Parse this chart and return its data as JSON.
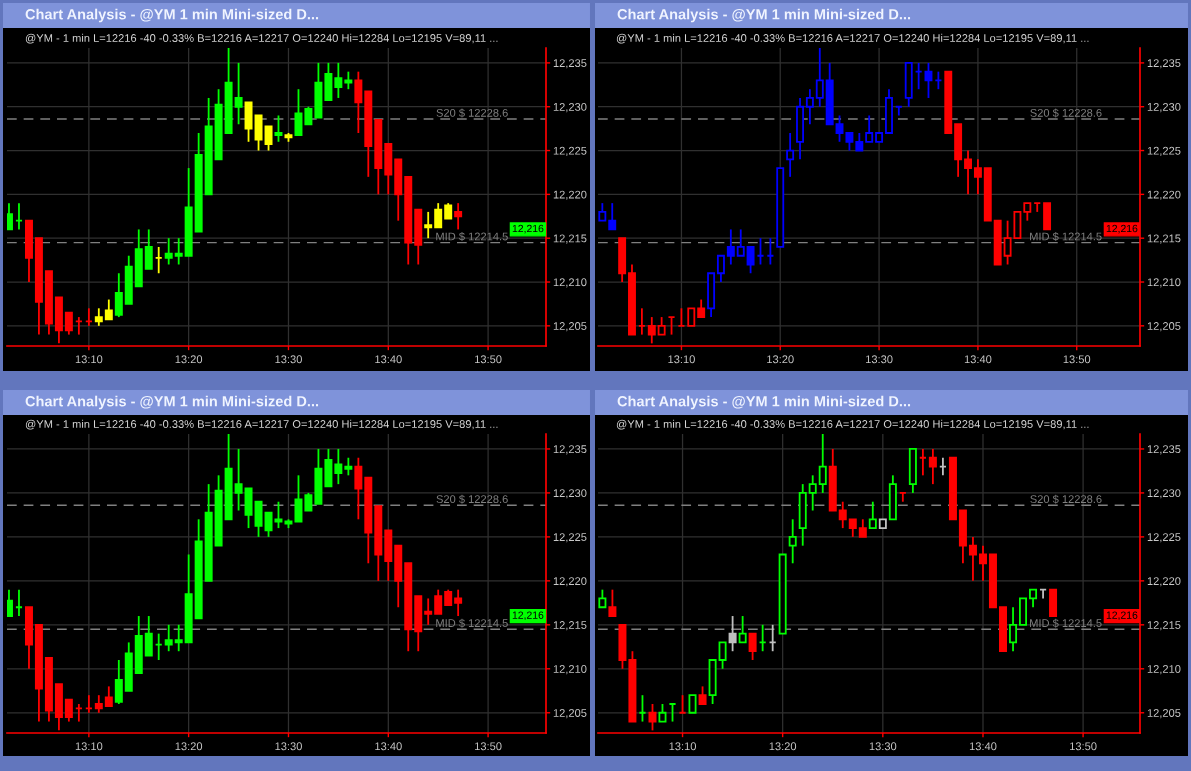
{
  "chart_data": [
    {
      "type": "candlestick",
      "title": "Chart Analysis - @YM 1 min Mini-sized D...",
      "subtitle": "@YM - 1 min L=12216 -40 -0.33% B=12216 A=12217 O=12240 Hi=12284 Lo=12195 V=89,11 ...",
      "x": [
        13.0333,
        13.05,
        13.0667,
        13.0833,
        13.1,
        13.1167,
        13.1333,
        13.15,
        13.1667,
        13.1833,
        13.2,
        13.2167,
        13.2333,
        13.25,
        13.2667,
        13.2833,
        13.3,
        13.3167,
        13.3333,
        13.35,
        13.3667,
        13.3833,
        13.4,
        13.4167,
        13.4333,
        13.45,
        13.4667,
        13.4833,
        13.5,
        13.5167,
        13.5333,
        13.55,
        13.5667,
        13.5833,
        13.6,
        13.6167,
        13.6333,
        13.65,
        13.6667,
        13.6833,
        13.7,
        13.7167,
        13.7333,
        13.75,
        13.7667,
        13.7833
      ],
      "ohlc": [
        [
          12216,
          12219,
          12216,
          12217.75
        ],
        [
          12217,
          12219,
          12216,
          12217
        ],
        [
          12217,
          12217,
          12210,
          12212.75
        ],
        [
          12215,
          12215,
          12204,
          12207.75
        ],
        [
          12211.25,
          12211.25,
          12204,
          12205.25
        ],
        [
          12208.25,
          12208.25,
          12203,
          12204.5
        ],
        [
          12206.5,
          12206.5,
          12204,
          12204.5
        ],
        [
          12205.5,
          12206,
          12204,
          12205.5
        ],
        [
          12205.5,
          12207,
          12205,
          12205.5
        ],
        [
          12205.5,
          12207,
          12205,
          12206
        ],
        [
          12205.75,
          12208,
          12205.75,
          12206.75
        ],
        [
          12206.25,
          12211,
          12206,
          12208.75
        ],
        [
          12207.5,
          12213,
          12207.5,
          12211.75
        ],
        [
          12209.5,
          12216,
          12209.5,
          12213.75
        ],
        [
          12211.5,
          12216,
          12211.5,
          12214
        ],
        [
          12212.75,
          12214,
          12211,
          12212.75
        ],
        [
          12212.75,
          12215,
          12212,
          12213.25
        ],
        [
          12213,
          12215,
          12212,
          12213.25
        ],
        [
          12213,
          12223,
          12213,
          12218.5
        ],
        [
          12215.75,
          12227,
          12215.75,
          12224.5
        ],
        [
          12220,
          12231,
          12220,
          12227.75
        ],
        [
          12224,
          12232,
          12224,
          12230.25
        ],
        [
          12227,
          12237,
          12227,
          12232.75
        ],
        [
          12230,
          12235,
          12228,
          12231
        ],
        [
          12230.5,
          12230.5,
          12226,
          12227.5
        ],
        [
          12229,
          12229,
          12225,
          12226.25
        ],
        [
          12227.75,
          12227.75,
          12225,
          12225.75
        ],
        [
          12226.75,
          12229,
          12226,
          12227
        ],
        [
          12226.75,
          12227,
          12226,
          12226.5
        ],
        [
          12226.75,
          12232,
          12226.75,
          12229.25
        ],
        [
          12228,
          12230,
          12228,
          12229.75
        ],
        [
          12228.75,
          12235,
          12228.75,
          12232.75
        ],
        [
          12230.75,
          12235,
          12230.75,
          12233.75
        ],
        [
          12232.25,
          12235,
          12231,
          12233.25
        ],
        [
          12232.75,
          12234,
          12232,
          12233
        ],
        [
          12233,
          12234,
          12227,
          12230.5
        ],
        [
          12231.75,
          12231.75,
          12222,
          12225.5
        ],
        [
          12228.5,
          12228.5,
          12220,
          12223
        ],
        [
          12225.75,
          12225.75,
          12220,
          12222.25
        ],
        [
          12224,
          12224,
          12217,
          12220
        ],
        [
          12222,
          12222,
          12212,
          12214.5
        ],
        [
          12218.25,
          12218.25,
          12212,
          12214.25
        ],
        [
          12216.25,
          12218,
          12215,
          12216.5
        ],
        [
          12216.25,
          12219,
          12216.25,
          12218.25
        ],
        [
          12217.25,
          12219,
          12217.25,
          12218.75
        ],
        [
          12218,
          12219,
          12216,
          12217.5
        ]
      ],
      "colors": [
        "#00ff00",
        "#00ff00",
        "#ff0000",
        "#ff0000",
        "#ff0000",
        "#ff0000",
        "#ff0000",
        "#ff0000",
        "#ff0000",
        "#ffff00",
        "#ffff00",
        "#00ff00",
        "#00ff00",
        "#00ff00",
        "#00ff00",
        "#ffff00",
        "#00ff00",
        "#00ff00",
        "#00ff00",
        "#00ff00",
        "#00ff00",
        "#00ff00",
        "#00ff00",
        "#00ff00",
        "#ffff00",
        "#ffff00",
        "#ffff00",
        "#00ff00",
        "#ffff00",
        "#00ff00",
        "#00ff00",
        "#00ff00",
        "#00ff00",
        "#00ff00",
        "#00ff00",
        "#ff0000",
        "#ff0000",
        "#ff0000",
        "#ff0000",
        "#ff0000",
        "#ff0000",
        "#ff0000",
        "#ffff00",
        "#ffff00",
        "#ffff00",
        "#ff0000"
      ],
      "xlim": [
        13.03,
        13.93
      ],
      "ylim": [
        12202.7,
        12236.7
      ],
      "xticks": [
        {
          "value": 13.1667,
          "label": "13:10"
        },
        {
          "value": 13.3333,
          "label": "13:20"
        },
        {
          "value": 13.5,
          "label": "13:30"
        },
        {
          "value": 13.6667,
          "label": "13:40"
        },
        {
          "value": 13.8333,
          "label": "13:50"
        }
      ],
      "yticks": [
        {
          "value": 12205,
          "label": "12,205"
        },
        {
          "value": 12210,
          "label": "12,210"
        },
        {
          "value": 12215,
          "label": "12,215"
        },
        {
          "value": 12220,
          "label": "12,220"
        },
        {
          "value": 12225,
          "label": "12,225"
        },
        {
          "value": 12230,
          "label": "12,230"
        },
        {
          "value": 12235,
          "label": "12,235"
        }
      ],
      "grid": true,
      "ref_lines": [
        {
          "axis": "y",
          "value": 12228.6,
          "label": "S20 $ 12228.6",
          "color": "#808080",
          "line_style": "dashed"
        },
        {
          "axis": "y",
          "value": 12214.5,
          "label": "MID $ 12214.5",
          "color": "#808080",
          "line_style": "dashed"
        }
      ],
      "annotations": [
        {
          "text": "12,216",
          "y": 12216
        }
      ]
    },
    {
      "type": "candlestick",
      "title": "Chart Analysis - @YM 1 min Mini-sized D...",
      "subtitle": "@YM - 1 min L=12216 -40 -0.33% B=12216 A=12217 O=12240 Hi=12284 Lo=12195 V=89,11 ...",
      "series": [
        {
          "color": "#ff0000",
          "x": [
            13.0667,
            13.0833,
            13.1,
            13.1167,
            13.1333,
            13.15,
            13.1667,
            13.1833,
            13.2,
            13.6167,
            13.6333,
            13.65,
            13.6667,
            13.6833,
            13.7,
            13.7167,
            13.7333,
            13.75,
            13.7667,
            13.7833
          ],
          "ohlc": [
            [
              12215,
              12215,
              12210,
              12211
            ],
            [
              12211,
              12212,
              12204,
              12204
            ],
            [
              12205,
              12207,
              12204,
              12205
            ],
            [
              12205,
              12206,
              12203,
              12204
            ],
            [
              12204,
              12206,
              12204,
              12205
            ],
            [
              12206,
              12206,
              12204,
              12206
            ],
            [
              12205,
              12207,
              12205,
              12205
            ],
            [
              12205,
              12207,
              12205,
              12207
            ],
            [
              12207,
              12208,
              12206,
              12206
            ],
            [
              12234,
              12234,
              12227,
              12227
            ],
            [
              12228,
              12228,
              12222,
              12224
            ],
            [
              12224,
              12225,
              12220,
              12223
            ],
            [
              12223,
              12224,
              12220,
              12222
            ],
            [
              12223,
              12223,
              12217,
              12217
            ],
            [
              12217,
              12217,
              12212,
              12212
            ],
            [
              12213,
              12217,
              12212,
              12215
            ],
            [
              12215,
              12218,
              12215,
              12218
            ],
            [
              12218,
              12219,
              12217,
              12219
            ],
            [
              12219,
              12219,
              12218,
              12219
            ],
            [
              12219,
              12219,
              12216,
              12216
            ]
          ],
          "colors": [
            "#ff0000",
            "#ff0000",
            "#ff0000",
            "#ff0000",
            "#000000",
            "#ff0000",
            "#ff0000",
            "#000000",
            "#ff0000",
            "#ff0000",
            "#ff0000",
            "#ff0000",
            "#ff0000",
            "#ff0000",
            "#ff0000",
            "#000000",
            "#000000",
            "#000000",
            "#ff0000",
            "#ff0000"
          ]
        },
        {
          "color": "#0000ff",
          "x": [
            13.0333,
            13.05,
            13.2167,
            13.2333,
            13.25,
            13.2667,
            13.2833,
            13.3,
            13.3167,
            13.3333,
            13.35,
            13.3667,
            13.3833,
            13.4,
            13.4167,
            13.4333,
            13.45,
            13.4667,
            13.4833,
            13.5,
            13.5167,
            13.5333,
            13.55,
            13.5667,
            13.5833,
            13.6
          ],
          "ohlc": [
            [
              12217,
              12219,
              12217,
              12218
            ],
            [
              12217,
              12219,
              12216,
              12216
            ],
            [
              12207,
              12211,
              12206,
              12211
            ],
            [
              12211,
              12213,
              12210,
              12213
            ],
            [
              12214,
              12216,
              12212,
              12213
            ],
            [
              12213,
              12216,
              12213,
              12214
            ],
            [
              12214,
              12214,
              12211,
              12212
            ],
            [
              12213,
              12215,
              12212,
              12213
            ],
            [
              12213,
              12215,
              12212,
              12213
            ],
            [
              12214,
              12223,
              12214,
              12223
            ],
            [
              12224,
              12227,
              12222,
              12225
            ],
            [
              12226,
              12231,
              12224,
              12230
            ],
            [
              12230,
              12232,
              12228,
              12231
            ],
            [
              12231,
              12237,
              12230,
              12233
            ],
            [
              12233,
              12235,
              12228,
              12228
            ],
            [
              12228,
              12229,
              12226,
              12227
            ],
            [
              12227,
              12227,
              12225,
              12226
            ],
            [
              12226,
              12227,
              12225,
              12225
            ],
            [
              12226,
              12229,
              12226,
              12227
            ],
            [
              12226,
              12227,
              12226,
              12227
            ],
            [
              12227,
              12232,
              12227,
              12231
            ],
            [
              12230,
              12230,
              12229,
              12230
            ],
            [
              12231,
              12235,
              12230,
              12235
            ],
            [
              12234,
              12235,
              12232,
              12234
            ],
            [
              12234,
              12235,
              12231,
              12233
            ],
            [
              12233,
              12234,
              12232,
              12233
            ]
          ],
          "colors": [
            "#000000",
            "#0000ff",
            "#000000",
            "#000000",
            "#0000ff",
            "#000000",
            "#0000ff",
            "#0000ff",
            "#0000ff",
            "#000000",
            "#000000",
            "#000000",
            "#000000",
            "#000000",
            "#0000ff",
            "#0000ff",
            "#0000ff",
            "#0000ff",
            "#000000",
            "#000000",
            "#000000",
            "#0000ff",
            "#000000",
            "#0000ff",
            "#0000ff",
            "#0000ff"
          ]
        }
      ],
      "xlim": [
        13.026,
        13.94
      ],
      "ylim": [
        12202.7,
        12236.7
      ],
      "xticks": [
        {
          "value": 13.1667,
          "label": "13:10"
        },
        {
          "value": 13.3333,
          "label": "13:20"
        },
        {
          "value": 13.5,
          "label": "13:30"
        },
        {
          "value": 13.6667,
          "label": "13:40"
        },
        {
          "value": 13.8333,
          "label": "13:50"
        }
      ],
      "yticks": [
        {
          "value": 12205,
          "label": "12,205"
        },
        {
          "value": 12210,
          "label": "12,210"
        },
        {
          "value": 12215,
          "label": "12,215"
        },
        {
          "value": 12220,
          "label": "12,220"
        },
        {
          "value": 12225,
          "label": "12,225"
        },
        {
          "value": 12230,
          "label": "12,230"
        },
        {
          "value": 12235,
          "label": "12,235"
        }
      ],
      "grid": true,
      "ref_lines": [
        {
          "axis": "y",
          "value": 12228.6,
          "label": "S20 $ 12228.6",
          "color": "#808080",
          "line_style": "dashed"
        },
        {
          "axis": "y",
          "value": 12214.5,
          "label": "MID $ 12214.5",
          "color": "#808080",
          "line_style": "dashed"
        }
      ],
      "annotations": [
        {
          "text": "12,216",
          "y": 12216
        }
      ]
    },
    {
      "type": "candlestick",
      "title": "Chart Analysis - @YM 1 min Mini-sized D...",
      "subtitle": "@YM - 1 min L=12216 -40 -0.33% B=12216 A=12217 O=12240 Hi=12284 Lo=12195 V=89,11 ...",
      "x": [
        13.0333,
        13.05,
        13.0667,
        13.0833,
        13.1,
        13.1167,
        13.1333,
        13.15,
        13.1667,
        13.1833,
        13.2,
        13.2167,
        13.2333,
        13.25,
        13.2667,
        13.2833,
        13.3,
        13.3167,
        13.3333,
        13.35,
        13.3667,
        13.3833,
        13.4,
        13.4167,
        13.4333,
        13.45,
        13.4667,
        13.4833,
        13.5,
        13.5167,
        13.5333,
        13.55,
        13.5667,
        13.5833,
        13.6,
        13.6167,
        13.6333,
        13.65,
        13.6667,
        13.6833,
        13.7,
        13.7167,
        13.7333,
        13.75,
        13.7667,
        13.7833
      ],
      "ohlc": [
        [
          12216,
          12219,
          12216,
          12217.75
        ],
        [
          12217,
          12219,
          12216,
          12217
        ],
        [
          12217,
          12217,
          12210,
          12212.75
        ],
        [
          12215,
          12215,
          12204,
          12207.75
        ],
        [
          12211.25,
          12211.25,
          12204,
          12205.25
        ],
        [
          12208.25,
          12208.25,
          12203,
          12204.5
        ],
        [
          12206.5,
          12206.5,
          12204,
          12204.5
        ],
        [
          12205.5,
          12206,
          12204,
          12205.5
        ],
        [
          12205.5,
          12207,
          12205,
          12205.5
        ],
        [
          12206,
          12207,
          12205,
          12205.5
        ],
        [
          12206.75,
          12208,
          12205.75,
          12205.75
        ],
        [
          12206.25,
          12211,
          12206,
          12208.75
        ],
        [
          12207.5,
          12213,
          12207.5,
          12211.75
        ],
        [
          12209.5,
          12216,
          12209.5,
          12213.75
        ],
        [
          12211.5,
          12216,
          12211.5,
          12214
        ],
        [
          12212.75,
          12214,
          12211,
          12212.75
        ],
        [
          12212.75,
          12215,
          12212,
          12213.25
        ],
        [
          12213,
          12215,
          12212,
          12213.25
        ],
        [
          12213,
          12223,
          12213,
          12218.5
        ],
        [
          12215.75,
          12227,
          12215.75,
          12224.5
        ],
        [
          12220,
          12231,
          12220,
          12227.75
        ],
        [
          12224,
          12232,
          12224,
          12230.25
        ],
        [
          12227,
          12237,
          12227,
          12232.75
        ],
        [
          12230,
          12235,
          12228,
          12231
        ],
        [
          12227.5,
          12230.5,
          12226,
          12230.5
        ],
        [
          12226.25,
          12229,
          12225,
          12229
        ],
        [
          12225.75,
          12227.75,
          12225,
          12227.75
        ],
        [
          12226.75,
          12229,
          12226,
          12227
        ],
        [
          12226.5,
          12227,
          12226,
          12226.75
        ],
        [
          12226.75,
          12232,
          12226.75,
          12229.25
        ],
        [
          12228,
          12230,
          12228,
          12229.75
        ],
        [
          12228.75,
          12235,
          12228.75,
          12232.75
        ],
        [
          12230.75,
          12235,
          12230.75,
          12233.75
        ],
        [
          12232.25,
          12235,
          12231,
          12233.25
        ],
        [
          12232.75,
          12234,
          12232,
          12233
        ],
        [
          12233,
          12234,
          12227,
          12230.5
        ],
        [
          12231.75,
          12231.75,
          12222,
          12225.5
        ],
        [
          12228.5,
          12228.5,
          12220,
          12223
        ],
        [
          12225.75,
          12225.75,
          12220,
          12222.25
        ],
        [
          12224,
          12224,
          12217,
          12220
        ],
        [
          12222,
          12222,
          12212,
          12214.5
        ],
        [
          12218.25,
          12218.25,
          12212,
          12214.25
        ],
        [
          12216.5,
          12218,
          12215,
          12216.25
        ],
        [
          12218.25,
          12219,
          12216.25,
          12216.25
        ],
        [
          12218.75,
          12219,
          12217.25,
          12217.25
        ],
        [
          12218,
          12219,
          12216,
          12217.5
        ]
      ],
      "colors": [
        "#00ff00",
        "#00ff00",
        "#ff0000",
        "#ff0000",
        "#ff0000",
        "#ff0000",
        "#ff0000",
        "#ff0000",
        "#ff0000",
        "#ff0000",
        "#ff0000",
        "#00ff00",
        "#00ff00",
        "#00ff00",
        "#00ff00",
        "#00ff00",
        "#00ff00",
        "#00ff00",
        "#00ff00",
        "#00ff00",
        "#00ff00",
        "#00ff00",
        "#00ff00",
        "#00ff00",
        "#00ff00",
        "#00ff00",
        "#00ff00",
        "#00ff00",
        "#00ff00",
        "#00ff00",
        "#00ff00",
        "#00ff00",
        "#00ff00",
        "#00ff00",
        "#00ff00",
        "#ff0000",
        "#ff0000",
        "#ff0000",
        "#ff0000",
        "#ff0000",
        "#ff0000",
        "#ff0000",
        "#ff0000",
        "#ff0000",
        "#ff0000",
        "#ff0000"
      ],
      "xlim": [
        13.03,
        13.93
      ],
      "ylim": [
        12202.7,
        12236.7
      ],
      "xticks": [
        {
          "value": 13.1667,
          "label": "13:10"
        },
        {
          "value": 13.3333,
          "label": "13:20"
        },
        {
          "value": 13.5,
          "label": "13:30"
        },
        {
          "value": 13.6667,
          "label": "13:40"
        },
        {
          "value": 13.8333,
          "label": "13:50"
        }
      ],
      "yticks": [
        {
          "value": 12205,
          "label": "12,205"
        },
        {
          "value": 12210,
          "label": "12,210"
        },
        {
          "value": 12215,
          "label": "12,215"
        },
        {
          "value": 12220,
          "label": "12,220"
        },
        {
          "value": 12225,
          "label": "12,225"
        },
        {
          "value": 12230,
          "label": "12,230"
        },
        {
          "value": 12235,
          "label": "12,235"
        }
      ],
      "grid": true,
      "ref_lines": [
        {
          "axis": "y",
          "value": 12228.6,
          "label": "S20 $ 12228.6",
          "color": "#808080",
          "line_style": "dashed"
        },
        {
          "axis": "y",
          "value": 12214.5,
          "label": "MID $ 12214.5",
          "color": "#808080",
          "line_style": "dashed"
        }
      ],
      "annotations": [
        {
          "text": "12,216",
          "y": 12216
        }
      ]
    },
    {
      "type": "candlestick",
      "title": "Chart Analysis - @YM 1 min Mini-sized D...",
      "subtitle": "@YM - 1 min L=12216 -40 -0.33% B=12216 A=12217 O=12240 Hi=12284 Lo=12195 V=89,11 ...",
      "series": [
        {
          "color": "#ff0000",
          "x": [
            13.05,
            13.0667,
            13.0833,
            13.1167,
            13.1667,
            13.2,
            13.2833,
            13.4167,
            13.4333,
            13.45,
            13.4667,
            13.5333,
            13.5667,
            13.5833,
            13.6167,
            13.6333,
            13.65,
            13.6667,
            13.6833,
            13.7,
            13.7833
          ],
          "ohlc": [
            [
              12217,
              12219,
              12216,
              12216
            ],
            [
              12215,
              12215,
              12210,
              12211
            ],
            [
              12211,
              12212,
              12204,
              12204
            ],
            [
              12205,
              12206,
              12203,
              12204
            ],
            [
              12205,
              12207,
              12205,
              12205
            ],
            [
              12207,
              12208,
              12206,
              12206
            ],
            [
              12214,
              12214,
              12211,
              12212
            ],
            [
              12233,
              12235,
              12228,
              12228
            ],
            [
              12228,
              12229,
              12226,
              12227
            ],
            [
              12227,
              12227,
              12225,
              12226
            ],
            [
              12226,
              12227,
              12225,
              12225
            ],
            [
              12230,
              12230,
              12229,
              12230
            ],
            [
              12234,
              12235,
              12232,
              12234
            ],
            [
              12234,
              12235,
              12231,
              12233
            ],
            [
              12234,
              12234,
              12227,
              12227
            ],
            [
              12228,
              12228,
              12222,
              12224
            ],
            [
              12224,
              12225,
              12220,
              12223
            ],
            [
              12223,
              12224,
              12220,
              12222
            ],
            [
              12223,
              12223,
              12217,
              12217
            ],
            [
              12217,
              12217,
              12212,
              12212
            ],
            [
              12219,
              12219,
              12216,
              12216
            ]
          ]
        },
        {
          "color": "#00ff00",
          "x": [
            13.0333,
            13.1,
            13.1333,
            13.15,
            13.1833,
            13.2167,
            13.2333,
            13.2667,
            13.3,
            13.3333,
            13.35,
            13.3667,
            13.3833,
            13.4,
            13.4833,
            13.5167,
            13.55,
            13.7167,
            13.7333,
            13.75
          ],
          "ohlc": [
            [
              12217,
              12219,
              12217,
              12218
            ],
            [
              12205,
              12207,
              12204,
              12205
            ],
            [
              12204,
              12206,
              12204,
              12205
            ],
            [
              12206,
              12206,
              12204,
              12206
            ],
            [
              12205,
              12207,
              12205,
              12207
            ],
            [
              12207,
              12211,
              12206,
              12211
            ],
            [
              12211,
              12213,
              12210,
              12213
            ],
            [
              12213,
              12216,
              12213,
              12214
            ],
            [
              12213,
              12215,
              12212,
              12213
            ],
            [
              12214,
              12223,
              12214,
              12223
            ],
            [
              12224,
              12227,
              12222,
              12225
            ],
            [
              12226,
              12231,
              12224,
              12230
            ],
            [
              12230,
              12232,
              12228,
              12231
            ],
            [
              12231,
              12237,
              12230,
              12233
            ],
            [
              12226,
              12229,
              12226,
              12227
            ],
            [
              12227,
              12232,
              12227,
              12231
            ],
            [
              12231,
              12235,
              12230,
              12235
            ],
            [
              12213,
              12217,
              12212,
              12215
            ],
            [
              12215,
              12218,
              12215,
              12218
            ],
            [
              12218,
              12219,
              12217,
              12219
            ]
          ],
          "colors": [
            "#000000",
            "#00ff00",
            "#000000",
            "#00ff00",
            "#000000",
            "#000000",
            "#000000",
            "#000000",
            "#00ff00",
            "#000000",
            "#000000",
            "#000000",
            "#000000",
            "#000000",
            "#000000",
            "#000000",
            "#000000",
            "#000000",
            "#000000",
            "#000000"
          ]
        },
        {
          "color": "#c0c0c0",
          "x": [
            13.25,
            13.3167,
            13.5,
            13.6,
            13.7667
          ],
          "ohlc": [
            [
              12214,
              12216,
              12212,
              12213
            ],
            [
              12213,
              12215,
              12212,
              12213
            ],
            [
              12226,
              12227,
              12226,
              12227
            ],
            [
              12233,
              12234,
              12232,
              12233
            ],
            [
              12219,
              12219,
              12218,
              12219
            ]
          ],
          "colors": [
            "#c0c0c0",
            "#c0c0c0",
            "#000000",
            "#c0c0c0",
            "#c0c0c0"
          ]
        }
      ],
      "xlim": [
        13.026,
        13.928
      ],
      "ylim": [
        12202.7,
        12236.7
      ],
      "xticks": [
        {
          "value": 13.1667,
          "label": "13:10"
        },
        {
          "value": 13.3333,
          "label": "13:20"
        },
        {
          "value": 13.5,
          "label": "13:30"
        },
        {
          "value": 13.6667,
          "label": "13:40"
        },
        {
          "value": 13.8333,
          "label": "13:50"
        }
      ],
      "yticks": [
        {
          "value": 12205,
          "label": "12,205"
        },
        {
          "value": 12210,
          "label": "12,210"
        },
        {
          "value": 12215,
          "label": "12,215"
        },
        {
          "value": 12220,
          "label": "12,220"
        },
        {
          "value": 12225,
          "label": "12,225"
        },
        {
          "value": 12230,
          "label": "12,230"
        },
        {
          "value": 12235,
          "label": "12,235"
        }
      ],
      "grid": true,
      "ref_lines": [
        {
          "axis": "y",
          "value": 12228.6,
          "label": "S20 $ 12228.6",
          "color": "#808080",
          "line_style": "dashed"
        },
        {
          "axis": "y",
          "value": 12214.5,
          "label": "MID $ 12214.5",
          "color": "#808080",
          "line_style": "dashed"
        }
      ],
      "annotations": [
        {
          "text": "12,216",
          "y": 12216
        }
      ]
    }
  ]
}
